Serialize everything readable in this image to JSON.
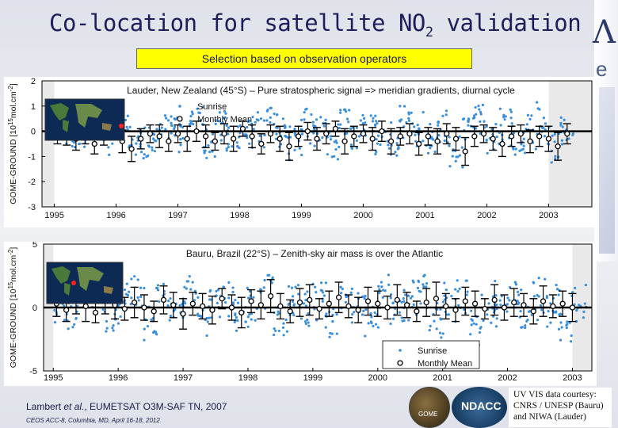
{
  "slide": {
    "title_main": "Co-location for satellite NO",
    "title_sub": "2",
    "title_end": " validation",
    "banner": "Selection based on observation operators",
    "logo_letter": "Λ",
    "logo_letter2": "e",
    "reference_author": "Lambert ",
    "reference_etal": "et al.",
    "reference_rest": ", EUMETSAT O3M-SAF TN, 2007",
    "conference": "CEOS ACC-8, Columbia, MD, April 16-18, 2012",
    "gome_logo_text": "GOME",
    "ndacc_logo_text": "NDACC",
    "credit_lines": [
      "UV VIS data courtesy:",
      "CNRS / UNESP (Bauru)",
      "and NIWA (Lauder)"
    ]
  },
  "chart_data": [
    {
      "type": "scatter",
      "title": "Lauder, New Zealand (45°S) – Pure stratospheric signal => meridian gradients, diurnal cycle",
      "ylabel": "GOME-GROUND [10^15 mol.cm^-2]",
      "ylabel_main": "GOME-GROUND [10",
      "ylabel_exp1": "15",
      "ylabel_mid": "mol.cm",
      "ylabel_exp2": "-2",
      "ylabel_end": "]",
      "xlim": [
        1994.8,
        2003.7
      ],
      "ylim": [
        -3,
        2
      ],
      "x_ticks": [
        1995,
        1996,
        1997,
        1998,
        1999,
        2000,
        2001,
        2002,
        2003
      ],
      "x_tick_labels": [
        "1995",
        "1996",
        "1997",
        "1998",
        "1999",
        "2000",
        "2001",
        "2002",
        "2003"
      ],
      "y_ticks": [
        -3,
        -2,
        -1,
        0,
        1,
        2
      ],
      "y_tick_labels": [
        "-3",
        "-2",
        "-1",
        "0",
        "1",
        "2"
      ],
      "zero_line": 0,
      "legend": {
        "position": "top-left",
        "entries": [
          "Sunrise",
          "Monthly Mean"
        ]
      },
      "scatter_spread": 0.55,
      "series": [
        {
          "name": "Sunrise",
          "color": "#3a8fdc",
          "x": [
            1995.1,
            1995.3,
            1995.5,
            1995.7,
            1995.9,
            1996.1,
            1996.3,
            1996.5,
            1996.7,
            1996.9,
            1997.1,
            1997.3,
            1997.5,
            1997.7,
            1997.9,
            1998.1,
            1998.3,
            1998.5,
            1998.7,
            1998.9,
            1999.1,
            1999.3,
            1999.5,
            1999.7,
            1999.9,
            2000.1,
            2000.3,
            2000.5,
            2000.7,
            2000.9,
            2001.1,
            2001.3,
            2001.5,
            2001.7,
            2001.9,
            2002.1,
            2002.3,
            2002.5,
            2002.7,
            2002.9,
            2003.1,
            2003.3
          ],
          "y": [
            0.2,
            -0.3,
            0.1,
            0.4,
            -0.2,
            0.5,
            -0.4,
            -0.6,
            0.0,
            0.3,
            -0.1,
            0.6,
            -0.5,
            0.2,
            -0.3,
            0.0,
            0.1,
            0.7,
            -0.2,
            -0.5,
            0.3,
            0.1,
            -0.6,
            0.4,
            -0.2,
            0.2,
            -0.1,
            -0.4,
            0.5,
            0.0,
            -0.3,
            0.2,
            -0.7,
            0.1,
            0.6,
            -0.2,
            0.3,
            -0.3,
            -0.1,
            0.4,
            -0.5,
            0.0
          ]
        },
        {
          "name": "Monthly Mean",
          "color": "#000000",
          "x": [
            1995.05,
            1995.2,
            1995.35,
            1995.5,
            1995.65,
            1995.8,
            1995.95,
            1996.1,
            1996.25,
            1996.4,
            1996.55,
            1996.7,
            1996.85,
            1997.0,
            1997.15,
            1997.3,
            1997.45,
            1997.6,
            1997.75,
            1997.9,
            1998.05,
            1998.2,
            1998.35,
            1998.5,
            1998.65,
            1998.8,
            1998.95,
            1999.1,
            1999.25,
            1999.4,
            1999.55,
            1999.7,
            1999.85,
            2000.0,
            2000.15,
            2000.3,
            2000.45,
            2000.6,
            2000.75,
            2000.9,
            2001.05,
            2001.2,
            2001.35,
            2001.5,
            2001.65,
            2001.8,
            2001.95,
            2002.1,
            2002.25,
            2002.4,
            2002.55,
            2002.7,
            2002.85,
            2003.0,
            2003.15,
            2003.3
          ],
          "y": [
            -0.1,
            -0.2,
            -0.3,
            0.0,
            -0.5,
            -0.2,
            0.1,
            -0.4,
            -0.7,
            -0.3,
            -0.1,
            -0.2,
            -0.4,
            -0.1,
            -0.3,
            0.0,
            -0.2,
            -0.4,
            -0.1,
            -0.3,
            0.1,
            -0.2,
            -0.5,
            -0.1,
            -0.3,
            -0.6,
            -0.2,
            0.0,
            -0.3,
            -0.1,
            0.1,
            -0.4,
            -0.2,
            -0.1,
            -0.3,
            0.0,
            -0.4,
            -0.2,
            -0.1,
            -0.5,
            -0.2,
            -0.4,
            -0.1,
            -0.3,
            -0.8,
            -0.2,
            -0.1,
            -0.3,
            -0.5,
            -0.2,
            -0.1,
            -0.4,
            -0.2,
            -0.3,
            -0.6,
            -0.1
          ],
          "err": [
            0.4,
            0.35,
            0.45,
            0.5,
            0.4,
            0.35,
            0.3,
            0.45,
            0.5,
            0.4,
            0.35,
            0.45,
            0.4,
            0.35,
            0.5,
            0.4,
            0.45,
            0.35,
            0.4,
            0.5,
            0.3,
            0.45,
            0.4,
            0.35,
            0.5,
            0.55,
            0.4,
            0.35,
            0.45,
            0.4,
            0.3,
            0.5,
            0.4,
            0.35,
            0.45,
            0.4,
            0.5,
            0.35,
            0.4,
            0.45,
            0.35,
            0.5,
            0.4,
            0.45,
            0.55,
            0.4,
            0.35,
            0.45,
            0.5,
            0.4,
            0.35,
            0.45,
            0.4,
            0.5,
            0.55,
            0.4
          ]
        }
      ]
    },
    {
      "type": "scatter",
      "title": "Bauru, Brazil (22°S) – Zenith-sky air mass is over the Atlantic",
      "ylabel": "GOME-GROUND [10^15 mol.cm^-2]",
      "ylabel_main": "GOME-GROUND [10",
      "ylabel_exp1": "15",
      "ylabel_mid": "mol.cm",
      "ylabel_exp2": "-2",
      "ylabel_end": "]",
      "xlim": [
        1994.85,
        2003.3
      ],
      "ylim": [
        -5,
        5
      ],
      "x_ticks": [
        1995,
        1996,
        1997,
        1998,
        1999,
        2000,
        2001,
        2002,
        2003
      ],
      "x_tick_labels": [
        "1995",
        "1996",
        "1997",
        "1998",
        "1999",
        "2000",
        "2001",
        "2002",
        "2003"
      ],
      "y_ticks": [
        -5,
        0,
        5
      ],
      "y_tick_labels": [
        "-5",
        "0",
        "5"
      ],
      "zero_line": 0,
      "legend": {
        "position": "bottom-right",
        "entries": [
          "Sunrise",
          "Monthly Mean"
        ]
      },
      "scatter_spread": 1.2,
      "series": [
        {
          "name": "Sunrise",
          "color": "#3a8fdc",
          "x": [
            1995.1,
            1995.3,
            1995.5,
            1995.7,
            1995.9,
            1996.1,
            1996.3,
            1996.5,
            1996.7,
            1996.9,
            1997.1,
            1997.3,
            1997.5,
            1997.7,
            1997.9,
            1998.1,
            1998.3,
            1998.5,
            1998.7,
            1998.9,
            1999.1,
            1999.3,
            1999.5,
            1999.7,
            1999.9,
            2000.1,
            2000.3,
            2000.5,
            2000.7,
            2000.9,
            2001.1,
            2001.3,
            2001.5,
            2001.7,
            2001.9,
            2002.1,
            2002.3,
            2002.5,
            2002.7,
            2002.9,
            2003.1
          ],
          "y": [
            0.5,
            -0.4,
            0.8,
            1.2,
            -0.9,
            0.3,
            1.0,
            -1.2,
            0.6,
            -0.3,
            1.1,
            -0.8,
            0.4,
            0.9,
            -0.6,
            0.2,
            1.3,
            -1.0,
            0.7,
            -0.4,
            0.5,
            -1.1,
            0.9,
            0.1,
            -0.7,
            1.0,
            -0.5,
            0.6,
            1.2,
            -0.9,
            0.3,
            0.8,
            -1.3,
            0.4,
            -0.2,
            1.1,
            -0.6,
            0.7,
            0.2,
            -1.0,
            0.5
          ]
        },
        {
          "name": "Monthly Mean",
          "color": "#000000",
          "x": [
            1995.05,
            1995.2,
            1995.35,
            1995.5,
            1995.65,
            1995.8,
            1995.95,
            1996.1,
            1996.25,
            1996.4,
            1996.55,
            1996.7,
            1996.85,
            1997.0,
            1997.15,
            1997.3,
            1997.45,
            1997.6,
            1997.75,
            1997.9,
            1998.05,
            1998.2,
            1998.35,
            1998.5,
            1998.65,
            1998.8,
            1998.95,
            1999.1,
            1999.25,
            1999.4,
            1999.55,
            1999.7,
            1999.85,
            2000.0,
            2000.15,
            2000.3,
            2000.45,
            2000.6,
            2000.75,
            2000.9,
            2001.05,
            2001.2,
            2001.35,
            2001.5,
            2001.65,
            2001.8,
            2001.95,
            2002.1,
            2002.25,
            2002.4,
            2002.55,
            2002.7,
            2002.85,
            2003.0
          ],
          "y": [
            0.3,
            -0.2,
            0.6,
            0.1,
            -0.4,
            0.5,
            0.2,
            -0.1,
            0.4,
            0.0,
            -0.3,
            0.6,
            0.2,
            -0.5,
            0.3,
            0.1,
            -0.2,
            0.7,
            0.0,
            -0.4,
            0.5,
            0.2,
            0.9,
            0.1,
            -0.3,
            0.4,
            0.6,
            -0.1,
            0.3,
            0.8,
            0.1,
            -0.2,
            0.5,
            0.3,
            0.0,
            0.6,
            0.2,
            -0.3,
            0.4,
            0.7,
            0.1,
            -0.2,
            0.5,
            0.3,
            -0.1,
            0.6,
            0.0,
            0.4,
            0.2,
            -0.3,
            0.5,
            0.1,
            0.3,
            0.0
          ],
          "err": [
            1.0,
            0.9,
            1.1,
            1.2,
            0.8,
            1.0,
            1.1,
            0.9,
            1.2,
            1.0,
            0.8,
            1.1,
            1.0,
            1.2,
            0.9,
            1.0,
            1.1,
            0.8,
            1.0,
            1.2,
            0.9,
            1.1,
            1.3,
            1.0,
            0.9,
            1.1,
            1.2,
            0.8,
            1.0,
            1.2,
            0.9,
            1.0,
            1.1,
            1.0,
            0.9,
            1.2,
            1.0,
            0.8,
            1.1,
            1.3,
            1.0,
            0.9,
            1.1,
            1.0,
            0.8,
            1.2,
            1.0,
            1.1,
            0.9,
            1.0,
            1.2,
            0.9,
            1.0,
            1.1
          ]
        }
      ]
    }
  ]
}
